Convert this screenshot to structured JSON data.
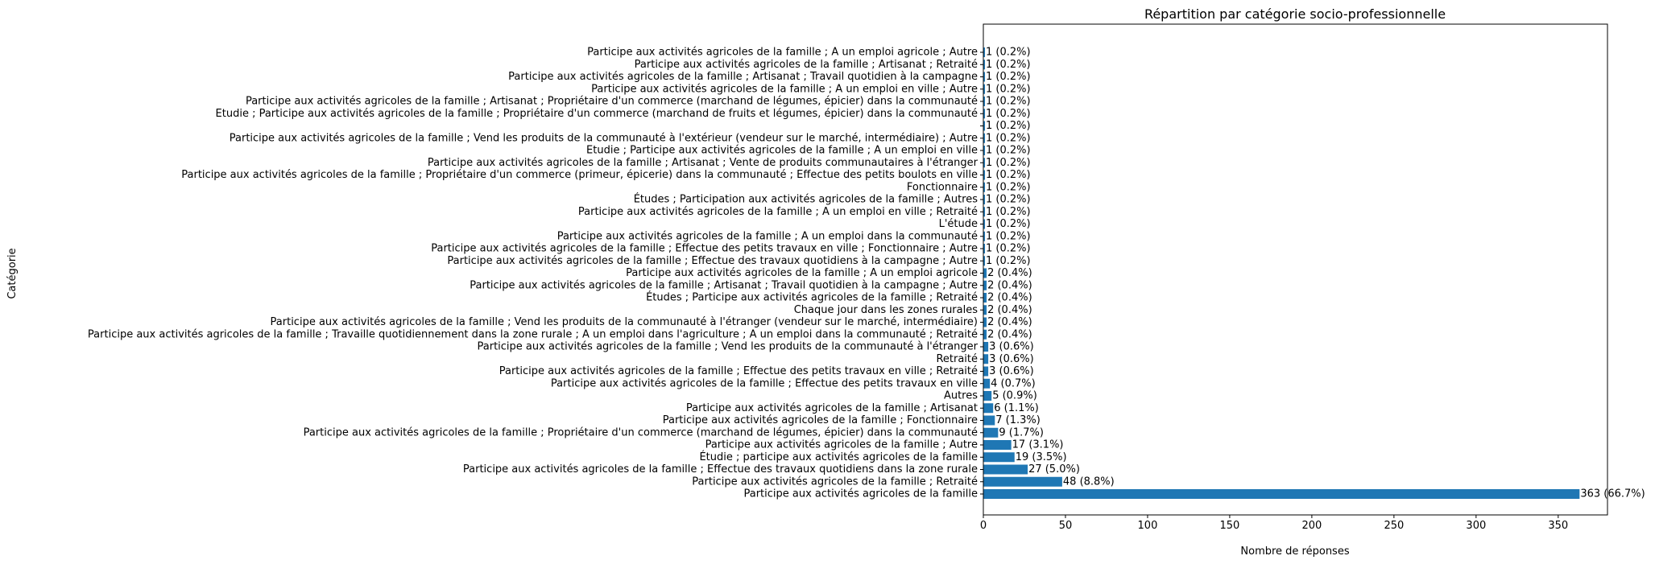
{
  "chart_data": {
    "type": "bar",
    "orientation": "horizontal",
    "title": "Répartition par catégorie socio-professionnelle",
    "xlabel": "Nombre de réponses",
    "ylabel": "Catégorie",
    "xlim": [
      0,
      380
    ],
    "xticks": [
      0,
      50,
      100,
      150,
      200,
      250,
      300,
      350
    ],
    "grid": false,
    "color": "#1f77b4",
    "bars": [
      {
        "category": "Participe aux activités agricoles de la famille",
        "value": 363,
        "label": "363 (66.7%)"
      },
      {
        "category": "Participe aux activités agricoles de la famille ; Retraité",
        "value": 48,
        "label": "48 (8.8%)"
      },
      {
        "category": "Participe aux activités agricoles de la famille ; Effectue des travaux quotidiens dans la zone rurale",
        "value": 27,
        "label": "27 (5.0%)"
      },
      {
        "category": "Étudie ; participe aux activités agricoles de la famille",
        "value": 19,
        "label": "19 (3.5%)"
      },
      {
        "category": "Participe aux activités agricoles de la famille ; Autre",
        "value": 17,
        "label": "17 (3.1%)"
      },
      {
        "category": "Participe aux activités agricoles de la famille ; Propriétaire d'un commerce (marchand de légumes, épicier) dans la communauté",
        "value": 9,
        "label": "9 (1.7%)"
      },
      {
        "category": "Participe aux activités agricoles de la famille ; Fonctionnaire",
        "value": 7,
        "label": "7 (1.3%)"
      },
      {
        "category": "Participe aux activités agricoles de la famille ; Artisanat",
        "value": 6,
        "label": "6 (1.1%)"
      },
      {
        "category": "Autres",
        "value": 5,
        "label": "5 (0.9%)"
      },
      {
        "category": "Participe aux activités agricoles de la famille ; Effectue des petits travaux en ville",
        "value": 4,
        "label": "4 (0.7%)"
      },
      {
        "category": "Participe aux activités agricoles de la famille ; Effectue des petits travaux en ville ; Retraité",
        "value": 3,
        "label": "3 (0.6%)"
      },
      {
        "category": "Retraité",
        "value": 3,
        "label": "3 (0.6%)"
      },
      {
        "category": "Participe aux activités agricoles de la famille ; Vend les produits de la communauté à l'étranger",
        "value": 3,
        "label": "3 (0.6%)"
      },
      {
        "category": "Participe aux activités agricoles de la famille ; Travaille quotidiennement dans la zone rurale ; A un emploi dans l'agriculture ; A un emploi dans la communauté ; Retraité",
        "value": 2,
        "label": "2 (0.4%)"
      },
      {
        "category": "Participe aux activités agricoles de la famille ; Vend les produits de la communauté à l'étranger (vendeur sur le marché, intermédiaire)",
        "value": 2,
        "label": "2 (0.4%)"
      },
      {
        "category": "Chaque jour dans les zones rurales",
        "value": 2,
        "label": "2 (0.4%)"
      },
      {
        "category": "Études ; Participe aux activités agricoles de la famille ; Retraité",
        "value": 2,
        "label": "2 (0.4%)"
      },
      {
        "category": "Participe aux activités agricoles de la famille ; Artisanat ; Travail quotidien à la campagne ; Autre",
        "value": 2,
        "label": "2 (0.4%)"
      },
      {
        "category": "Participe aux activités agricoles de la famille ; A un emploi agricole",
        "value": 2,
        "label": "2 (0.4%)"
      },
      {
        "category": "Participe aux activités agricoles de la famille ; Effectue des travaux quotidiens à la campagne ; Autre",
        "value": 1,
        "label": "1 (0.2%)"
      },
      {
        "category": "Participe aux activités agricoles de la famille ; Effectue des petits travaux en ville ; Fonctionnaire ; Autre",
        "value": 1,
        "label": "1 (0.2%)"
      },
      {
        "category": "Participe aux activités agricoles de la famille ; A un emploi dans la communauté",
        "value": 1,
        "label": "1 (0.2%)"
      },
      {
        "category": "L'étude",
        "value": 1,
        "label": "1 (0.2%)"
      },
      {
        "category": "Participe aux activités agricoles de la famille ; A un emploi en ville ; Retraité",
        "value": 1,
        "label": "1 (0.2%)"
      },
      {
        "category": "Études ; Participation aux activités agricoles de la famille ; Autres",
        "value": 1,
        "label": "1 (0.2%)"
      },
      {
        "category": "Fonctionnaire",
        "value": 1,
        "label": "1 (0.2%)"
      },
      {
        "category": "Participe aux activités agricoles de la famille ; Propriétaire d'un commerce (primeur, épicerie) dans la communauté ; Effectue des petits boulots en ville",
        "value": 1,
        "label": "1 (0.2%)"
      },
      {
        "category": "Participe aux activités agricoles de la famille ; Artisanat ; Vente de produits communautaires à l'étranger",
        "value": 1,
        "label": "1 (0.2%)"
      },
      {
        "category": "Etudie ; Participe aux activités agricoles de la famille ; A un emploi en ville",
        "value": 1,
        "label": "1 (0.2%)"
      },
      {
        "category": "Participe aux activités agricoles de la famille ; Vend les produits de la communauté à l'extérieur (vendeur sur le marché, intermédiaire) ; Autre",
        "value": 1,
        "label": "1 (0.2%)"
      },
      {
        "category": "",
        "value": 1,
        "label": "1 (0.2%)"
      },
      {
        "category": "Etudie ; Participe aux activités agricoles de la famille ; Propriétaire d'un commerce (marchand de fruits et légumes, épicier) dans la communauté",
        "value": 1,
        "label": "1 (0.2%)"
      },
      {
        "category": "Participe aux activités agricoles de la famille ; Artisanat ; Propriétaire d'un commerce (marchand de légumes, épicier) dans la communauté",
        "value": 1,
        "label": "1 (0.2%)"
      },
      {
        "category": "Participe aux activités agricoles de la famille ; A un emploi en ville ; Autre",
        "value": 1,
        "label": "1 (0.2%)"
      },
      {
        "category": "Participe aux activités agricoles de la famille ; Artisanat ; Travail quotidien à la campagne",
        "value": 1,
        "label": "1 (0.2%)"
      },
      {
        "category": "Participe aux activités agricoles de la famille ; Artisanat ; Retraité",
        "value": 1,
        "label": "1 (0.2%)"
      },
      {
        "category": "Participe aux activités agricoles de la famille ; A un emploi agricole ; Autre",
        "value": 1,
        "label": "1 (0.2%)"
      }
    ]
  }
}
